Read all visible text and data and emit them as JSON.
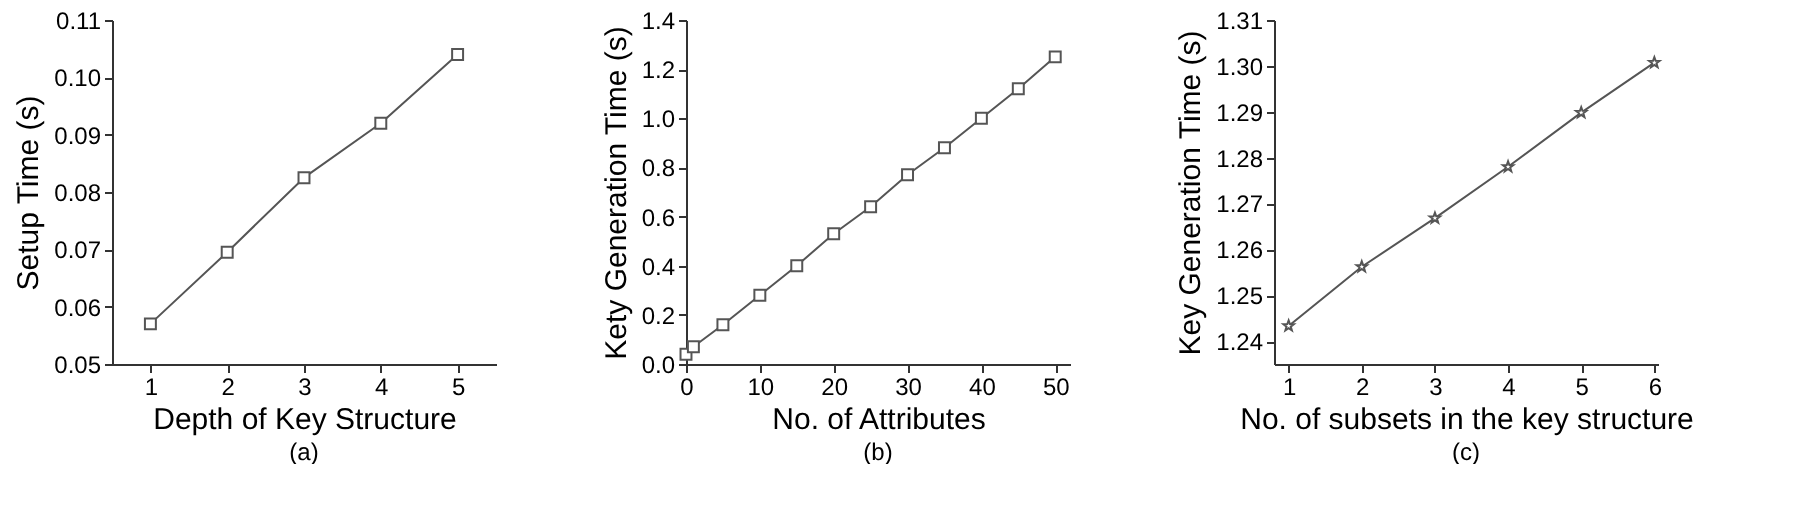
{
  "chart_data": [
    {
      "type": "line",
      "xlabel": "Depth of Key Structure",
      "ylabel": "Setup Time (s)",
      "annotations": [
        "(a)"
      ],
      "x": [
        1,
        2,
        3,
        4,
        5
      ],
      "series": [
        {
          "color": "#555555",
          "values": [
            0.057,
            0.0695,
            0.0825,
            0.092,
            0.104
          ]
        }
      ],
      "xlim": [
        0.5,
        5.5
      ],
      "xticks": [
        1,
        2,
        3,
        4,
        5
      ],
      "ylim": [
        0.05,
        0.11
      ],
      "yticks": [
        0.05,
        0.06,
        0.07,
        0.08,
        0.09,
        {
          "value": 0.1,
          "label": "0.10"
        },
        0.11
      ],
      "marker": "square",
      "line_style": "solid"
    },
    {
      "type": "line",
      "xlabel": "No. of Attributes",
      "ylabel": "Kety Generation Time (s)",
      "annotations": [
        "(b)"
      ],
      "x": [
        0,
        1,
        5,
        10,
        15,
        20,
        25,
        30,
        35,
        40,
        45,
        50
      ],
      "series": [
        {
          "color": "#555555",
          "values": [
            0.04,
            0.07,
            0.16,
            0.28,
            0.4,
            0.53,
            0.64,
            0.77,
            0.88,
            1.0,
            1.12,
            1.25
          ]
        }
      ],
      "xlim": [
        0,
        52
      ],
      "xticks": [
        0,
        10,
        20,
        30,
        40,
        50
      ],
      "ylim": [
        0,
        1.4
      ],
      "yticks": [
        {
          "value": 0,
          "label": "0.0"
        },
        0.2,
        0.4,
        0.6,
        0.8,
        {
          "value": 1,
          "label": "1.0"
        },
        1.2,
        1.4
      ],
      "marker": "square",
      "line_style": "solid"
    },
    {
      "type": "line",
      "xlabel": "No. of subsets in the key structure",
      "ylabel": "Key Generation Time (s)",
      "annotations": [
        "(c)"
      ],
      "x": [
        1,
        2,
        3,
        4,
        5,
        6
      ],
      "series": [
        {
          "color": "#555555",
          "values": [
            1.2433,
            1.2562,
            1.2668,
            1.278,
            1.2898,
            1.3007
          ]
        }
      ],
      "xlim": [
        0.8,
        6.05
      ],
      "xticks": [
        1,
        2,
        3,
        4,
        5,
        6
      ],
      "ylim": [
        1.235,
        1.31
      ],
      "yticks": [
        1.24,
        1.25,
        1.26,
        1.27,
        1.28,
        1.29,
        {
          "value": 1.3,
          "label": "1.30"
        },
        1.31
      ],
      "marker": "star",
      "line_style": "solid"
    }
  ]
}
